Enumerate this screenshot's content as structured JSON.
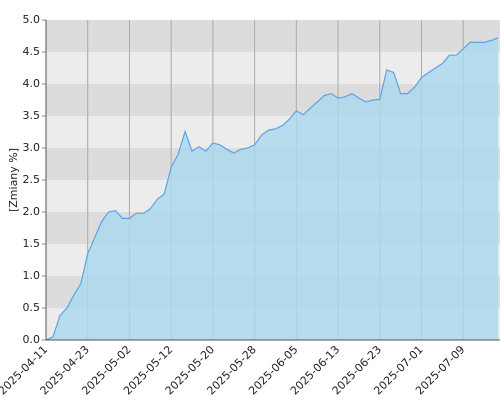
{
  "chart_data": {
    "type": "area",
    "y_label": "[Zmiany %]",
    "categories": [
      "2025-04-11",
      null,
      null,
      null,
      null,
      null,
      "2025-04-23",
      null,
      null,
      null,
      null,
      null,
      "2025-05-02",
      null,
      null,
      null,
      null,
      null,
      "2025-05-12",
      null,
      null,
      null,
      null,
      null,
      "2025-05-20",
      null,
      null,
      null,
      null,
      null,
      "2025-05-28",
      null,
      null,
      null,
      null,
      null,
      "2025-06-05",
      null,
      null,
      null,
      null,
      null,
      "2025-06-13",
      null,
      null,
      null,
      null,
      null,
      "2025-06-23",
      null,
      null,
      null,
      null,
      null,
      "2025-07-01",
      null,
      null,
      null,
      null,
      null,
      "2025-07-09",
      null,
      null,
      null,
      null,
      null
    ],
    "values": [
      0.0,
      0.05,
      0.38,
      0.5,
      0.7,
      0.88,
      1.35,
      1.6,
      1.85,
      2.0,
      2.02,
      1.9,
      1.9,
      1.98,
      1.98,
      2.05,
      2.2,
      2.28,
      2.7,
      2.9,
      3.26,
      2.95,
      3.02,
      2.95,
      3.08,
      3.05,
      2.98,
      2.92,
      2.98,
      3.0,
      3.05,
      3.2,
      3.28,
      3.3,
      3.35,
      3.45,
      3.58,
      3.52,
      3.62,
      3.72,
      3.82,
      3.85,
      3.78,
      3.8,
      3.85,
      3.78,
      3.72,
      3.75,
      3.76,
      4.22,
      4.18,
      3.85,
      3.85,
      3.95,
      4.1,
      4.18,
      4.25,
      4.32,
      4.45,
      4.45,
      4.55,
      4.65,
      4.65,
      4.65,
      4.68,
      4.72
    ],
    "color": "#5ba3e6",
    "fill": "#a9d8ee",
    "ylim": [
      0,
      5
    ],
    "yticks": [
      {
        "value": 0,
        "label": "0.0"
      },
      0.5,
      {
        "value": 1,
        "label": "1.0"
      },
      1.5,
      {
        "value": 2,
        "label": "2.0"
      },
      2.5,
      {
        "value": 3,
        "label": "3.0"
      },
      3.5,
      {
        "value": 4,
        "label": "4.0"
      },
      4.5,
      {
        "value": 5,
        "label": "5.0"
      }
    ],
    "band_colors": [
      "#ececec",
      "#dcdcdc"
    ],
    "grid": true
  }
}
